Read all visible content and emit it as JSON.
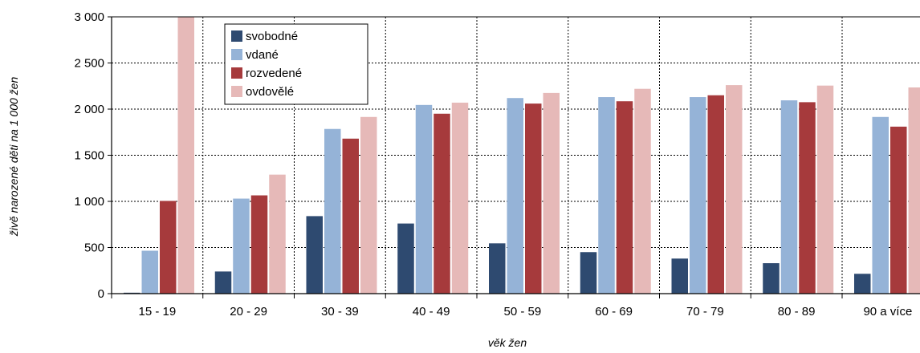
{
  "chart_data": {
    "type": "bar",
    "title": "",
    "xlabel": "věk žen",
    "ylabel": "živě narozené děti na 1 000 žen",
    "categories": [
      "15 - 19",
      "20 - 29",
      "30 - 39",
      "40 - 49",
      "50 - 59",
      "60 - 69",
      "70 - 79",
      "80 - 89",
      "90 a více"
    ],
    "series": [
      {
        "name": "svobodné",
        "color": "#2E4A70",
        "values": [
          10,
          240,
          840,
          760,
          545,
          450,
          380,
          330,
          215
        ]
      },
      {
        "name": "vdané",
        "color": "#95B3D7",
        "values": [
          465,
          1030,
          1785,
          2045,
          2120,
          2130,
          2130,
          2095,
          1915
        ]
      },
      {
        "name": "rozvedené",
        "color": "#A63A3C",
        "values": [
          1005,
          1065,
          1680,
          1950,
          2060,
          2085,
          2150,
          2075,
          1810
        ]
      },
      {
        "name": "ovdovělé",
        "color": "#E6B9B8",
        "values": [
          3000,
          1290,
          1915,
          2070,
          2175,
          2220,
          2260,
          2255,
          2235
        ]
      }
    ],
    "ylim": [
      0,
      3000
    ],
    "yticks": [
      0,
      500,
      1000,
      1500,
      2000,
      2500,
      3000
    ],
    "ytick_labels": [
      "0",
      "500",
      "1 000",
      "1 500",
      "2 000",
      "2 500",
      "3 000"
    ],
    "grid": true,
    "legend_position": "top-left"
  }
}
